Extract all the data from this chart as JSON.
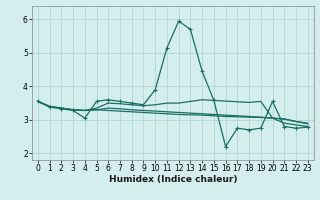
{
  "xlabel": "Humidex (Indice chaleur)",
  "bg_color": "#d4eeee",
  "grid_color": "#b8d8d8",
  "line_color": "#1a6e64",
  "xlim": [
    -0.5,
    23.5
  ],
  "ylim": [
    1.8,
    6.4
  ],
  "xticks": [
    0,
    1,
    2,
    3,
    4,
    5,
    6,
    7,
    8,
    9,
    10,
    11,
    12,
    13,
    14,
    15,
    16,
    17,
    18,
    19,
    20,
    21,
    22,
    23
  ],
  "yticks": [
    2,
    3,
    4,
    5,
    6
  ],
  "lines": [
    {
      "x": [
        0,
        1,
        2,
        3,
        4,
        5,
        6,
        7,
        8,
        9,
        10,
        11,
        12,
        13,
        14,
        15,
        16,
        17,
        18,
        19,
        20,
        21,
        22,
        23
      ],
      "y": [
        3.55,
        3.4,
        3.35,
        3.3,
        3.28,
        3.3,
        3.28,
        3.26,
        3.24,
        3.22,
        3.2,
        3.18,
        3.16,
        3.15,
        3.14,
        3.12,
        3.1,
        3.09,
        3.08,
        3.07,
        3.05,
        3.03,
        2.95,
        2.9
      ],
      "marker": false
    },
    {
      "x": [
        0,
        1,
        2,
        3,
        4,
        5,
        6,
        7,
        8,
        9,
        10,
        11,
        12,
        13,
        14,
        15,
        16,
        17,
        18,
        19,
        20,
        21,
        22,
        23
      ],
      "y": [
        3.55,
        3.4,
        3.35,
        3.3,
        3.28,
        3.3,
        3.35,
        3.33,
        3.3,
        3.28,
        3.26,
        3.24,
        3.22,
        3.2,
        3.18,
        3.16,
        3.14,
        3.12,
        3.1,
        3.08,
        3.05,
        3.02,
        2.95,
        2.88
      ],
      "marker": false
    },
    {
      "x": [
        0,
        1,
        2,
        3,
        4,
        5,
        6,
        7,
        8,
        9,
        10,
        11,
        12,
        13,
        14,
        15,
        16,
        17,
        18,
        19,
        20,
        21,
        22,
        23
      ],
      "y": [
        3.55,
        3.4,
        3.35,
        3.3,
        3.28,
        3.35,
        3.5,
        3.48,
        3.45,
        3.42,
        3.45,
        3.5,
        3.5,
        3.55,
        3.6,
        3.58,
        3.56,
        3.54,
        3.52,
        3.55,
        3.05,
        2.9,
        2.85,
        2.8
      ],
      "marker": false
    },
    {
      "x": [
        0,
        1,
        2,
        3,
        4,
        5,
        6,
        7,
        8,
        9,
        10,
        11,
        12,
        13,
        14,
        15,
        16,
        17,
        18,
        19,
        20,
        21,
        22,
        23
      ],
      "y": [
        3.55,
        3.38,
        3.33,
        3.28,
        3.05,
        3.55,
        3.6,
        3.55,
        3.5,
        3.45,
        3.9,
        5.15,
        5.95,
        5.7,
        4.45,
        3.58,
        2.2,
        2.75,
        2.7,
        2.75,
        3.55,
        2.8,
        2.75,
        2.78
      ],
      "marker": true
    }
  ]
}
